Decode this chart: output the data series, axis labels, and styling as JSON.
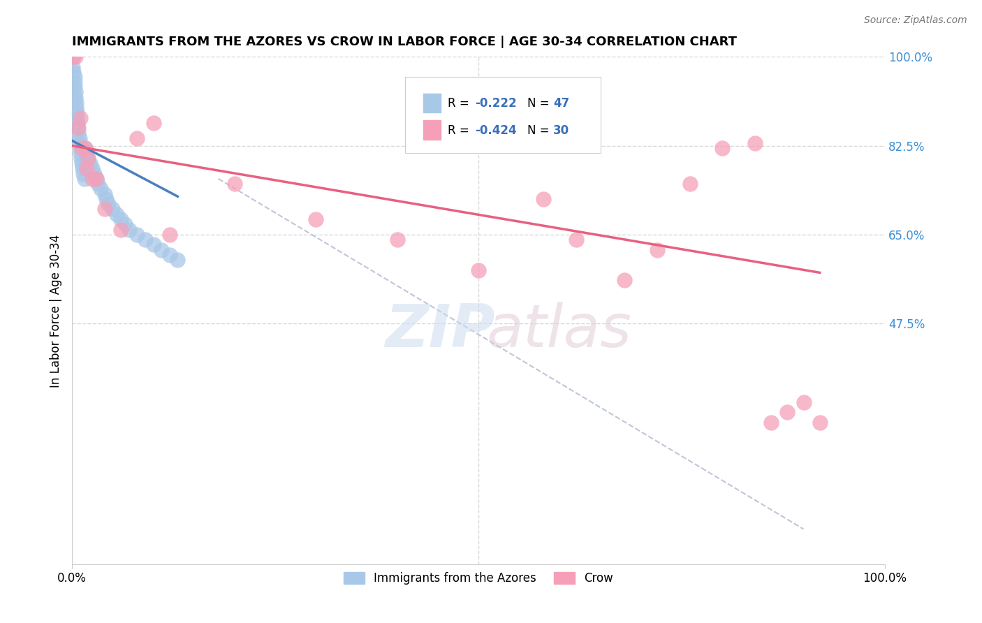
{
  "title": "IMMIGRANTS FROM THE AZORES VS CROW IN LABOR FORCE | AGE 30-34 CORRELATION CHART",
  "source": "Source: ZipAtlas.com",
  "ylabel": "In Labor Force | Age 30-34",
  "xlim": [
    0.0,
    1.0
  ],
  "ylim": [
    0.0,
    1.0
  ],
  "blue_color": "#a8c8e8",
  "pink_color": "#f5a0b8",
  "blue_line_color": "#4a7fc0",
  "pink_line_color": "#e86080",
  "dashed_line_color": "#b0b8cc",
  "grid_color": "#d8d8d8",
  "azores_x": [
    0.001,
    0.001,
    0.002,
    0.003,
    0.003,
    0.003,
    0.004,
    0.004,
    0.005,
    0.005,
    0.006,
    0.006,
    0.007,
    0.007,
    0.008,
    0.009,
    0.009,
    0.01,
    0.01,
    0.011,
    0.012,
    0.013,
    0.014,
    0.015,
    0.016,
    0.018,
    0.02,
    0.022,
    0.025,
    0.027,
    0.03,
    0.032,
    0.035,
    0.04,
    0.042,
    0.045,
    0.05,
    0.055,
    0.06,
    0.065,
    0.07,
    0.08,
    0.09,
    0.1,
    0.11,
    0.12,
    0.13
  ],
  "azores_y": [
    1.0,
    0.98,
    0.97,
    0.96,
    0.95,
    0.94,
    0.93,
    0.92,
    0.91,
    0.9,
    0.89,
    0.88,
    0.87,
    0.86,
    0.85,
    0.84,
    0.83,
    0.82,
    0.81,
    0.8,
    0.79,
    0.78,
    0.77,
    0.76,
    0.82,
    0.81,
    0.8,
    0.79,
    0.78,
    0.77,
    0.76,
    0.75,
    0.74,
    0.73,
    0.72,
    0.71,
    0.7,
    0.69,
    0.68,
    0.67,
    0.66,
    0.65,
    0.64,
    0.63,
    0.62,
    0.61,
    0.6
  ],
  "crow_x": [
    0.002,
    0.004,
    0.008,
    0.01,
    0.012,
    0.016,
    0.018,
    0.02,
    0.025,
    0.03,
    0.04,
    0.06,
    0.08,
    0.1,
    0.12,
    0.2,
    0.3,
    0.4,
    0.5,
    0.58,
    0.62,
    0.68,
    0.72,
    0.76,
    0.8,
    0.84,
    0.86,
    0.88,
    0.9,
    0.92
  ],
  "crow_y": [
    1.0,
    1.0,
    0.86,
    0.88,
    0.82,
    0.82,
    0.78,
    0.8,
    0.76,
    0.76,
    0.7,
    0.66,
    0.84,
    0.87,
    0.65,
    0.75,
    0.68,
    0.64,
    0.58,
    0.72,
    0.64,
    0.56,
    0.62,
    0.75,
    0.82,
    0.83,
    0.28,
    0.3,
    0.32,
    0.28
  ],
  "blue_line_x": [
    0.0,
    0.13
  ],
  "blue_line_y": [
    0.835,
    0.725
  ],
  "pink_line_x": [
    0.0,
    0.92
  ],
  "pink_line_y": [
    0.825,
    0.575
  ],
  "dash_line_x": [
    0.18,
    0.9
  ],
  "dash_line_y": [
    0.76,
    0.07
  ],
  "ytick_positions": [
    0.475,
    0.65,
    0.825,
    1.0
  ],
  "ytick_labels": [
    "47.5%",
    "65.0%",
    "82.5%",
    "100.0%"
  ],
  "xtick_positions": [
    0.0,
    1.0
  ],
  "xtick_labels": [
    "0.0%",
    "100.0%"
  ]
}
